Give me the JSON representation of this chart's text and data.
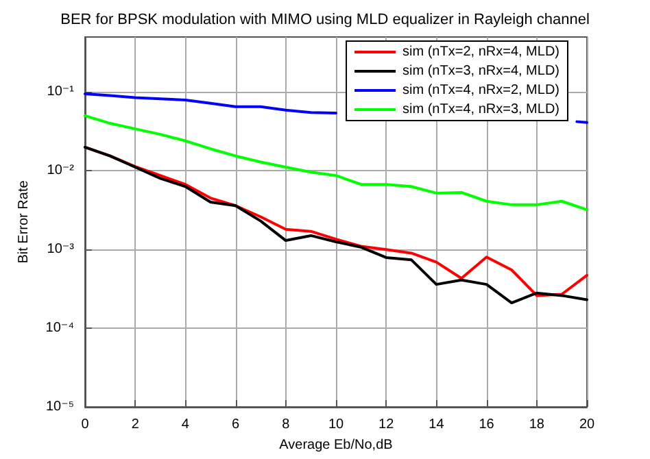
{
  "chart_data": {
    "type": "line",
    "title": "BER for BPSK modulation with MIMO using MLD equalizer in Rayleigh channel",
    "xlabel": "Average Eb/No,dB",
    "ylabel": "Bit Error Rate",
    "x": [
      0,
      1,
      2,
      3,
      4,
      5,
      6,
      7,
      8,
      9,
      10,
      11,
      12,
      13,
      14,
      15,
      16,
      17,
      18,
      19,
      20
    ],
    "series": [
      {
        "name": "sim (nTx=2, nRx=4, MLD)",
        "color": "#ff0000",
        "values": [
          0.0199,
          0.0154,
          0.0113,
          0.0087,
          0.0067,
          0.0045,
          0.0036,
          0.0026,
          0.0018,
          0.0017,
          0.00135,
          0.0011,
          0.001,
          0.0009,
          0.00069,
          0.00043,
          0.0008,
          0.00055,
          0.00026,
          0.00027,
          0.00047
        ]
      },
      {
        "name": "sim (nTx=3, nRx=4, MLD)",
        "color": "#000000",
        "values": [
          0.0199,
          0.0154,
          0.0111,
          0.008,
          0.0063,
          0.004,
          0.0036,
          0.0023,
          0.0013,
          0.0015,
          0.00125,
          0.00107,
          0.00079,
          0.00074,
          0.00036,
          0.00041,
          0.00036,
          0.00021,
          0.00028,
          0.00026,
          0.00023
        ]
      },
      {
        "name": "sim (nTx=4, nRx=2, MLD)",
        "color": "#0000ff",
        "x": [
          0,
          1,
          2,
          3,
          4,
          5,
          6,
          7,
          8,
          9,
          10,
          11,
          12,
          13,
          14,
          15,
          16,
          17,
          18,
          19.6,
          20
        ],
        "values": [
          0.095,
          0.09,
          0.085,
          0.082,
          0.079,
          0.072,
          0.065,
          0.065,
          0.059,
          0.055,
          0.054,
          null,
          null,
          null,
          null,
          null,
          null,
          null,
          null,
          0.042,
          0.041
        ]
      },
      {
        "name": "sim (nTx=4, nRx=3, MLD)",
        "color": "#00ff00",
        "values": [
          0.05,
          0.04,
          0.034,
          0.029,
          0.024,
          0.019,
          0.0154,
          0.0129,
          0.0111,
          0.0096,
          0.0087,
          0.0067,
          0.0067,
          0.0063,
          0.0052,
          0.0053,
          0.0041,
          0.0037,
          0.0037,
          0.0041,
          0.0032
        ]
      }
    ],
    "xlim": [
      0,
      20
    ],
    "xticks": [
      0,
      2,
      4,
      6,
      8,
      10,
      12,
      14,
      16,
      18,
      20
    ],
    "ylim": [
      1e-05,
      0.5
    ],
    "log": true,
    "yticks": [
      {
        "value": 1e-05,
        "label": "10⁻⁵"
      },
      {
        "value": 0.0001,
        "label": "10⁻⁴"
      },
      {
        "value": 0.001,
        "label": "10⁻³"
      },
      {
        "value": 0.01,
        "label": "10⁻²"
      },
      {
        "value": 0.1,
        "label": "10⁻¹"
      }
    ],
    "grid": true,
    "legend": "top right",
    "marker": "none",
    "line_style": "solid"
  }
}
